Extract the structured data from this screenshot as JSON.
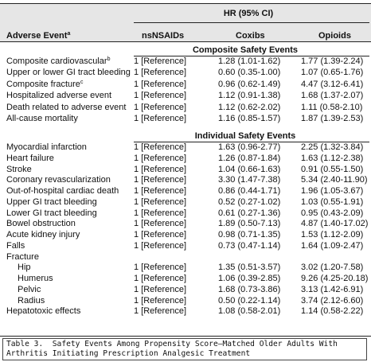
{
  "table": {
    "group_header": "HR (95% CI)",
    "columns": [
      "Adverse Event",
      "nsNSAIDs",
      "Coxibs",
      "Opioids"
    ],
    "column_note": "a",
    "sections": [
      {
        "title": "Composite Safety Events",
        "rows": [
          {
            "event": "Composite cardiovascular",
            "note": "b",
            "cells": [
              "1 [Reference]",
              "1.28 (1.01-1.62)",
              "1.77 (1.39-2.24)"
            ]
          },
          {
            "event": "Upper or lower GI tract bleeding",
            "cells": [
              "1 [Reference]",
              "0.60 (0.35-1.00)",
              "1.07 (0.65-1.76)"
            ]
          },
          {
            "event": "Composite fracture",
            "note": "c",
            "cells": [
              "1 [Reference]",
              "0.96 (0.62-1.49)",
              "4.47 (3.12-6.41)"
            ]
          },
          {
            "event": "Hospitalized adverse event",
            "cells": [
              "1 [Reference]",
              "1.12 (0.91-1.38)",
              "1.68 (1.37-2.07)"
            ]
          },
          {
            "event": "Death related to adverse event",
            "cells": [
              "1 [Reference]",
              "1.12 (0.62-2.02)",
              "1.11 (0.58-2.10)"
            ]
          },
          {
            "event": "All-cause mortality",
            "cells": [
              "1 [Reference]",
              "1.16 (0.85-1.57)",
              "1.87 (1.39-2.53)"
            ]
          }
        ]
      },
      {
        "title": "Individual Safety Events",
        "rows": [
          {
            "event": "Myocardial infarction",
            "cells": [
              "1 [Reference]",
              "1.63 (0.96-2.77)",
              "2.25 (1.32-3.84)"
            ]
          },
          {
            "event": "Heart failure",
            "cells": [
              "1 [Reference]",
              "1.26 (0.87-1.84)",
              "1.63 (1.12-2.38)"
            ]
          },
          {
            "event": "Stroke",
            "cells": [
              "1 [Reference]",
              "1.04 (0.66-1.63)",
              "0.91 (0.55-1.50)"
            ]
          },
          {
            "event": "Coronary revascularization",
            "cells": [
              "1 [Reference]",
              "3.30 (1.47-7.38)",
              "5.34 (2.40-11.90)"
            ]
          },
          {
            "event": "Out-of-hospital cardiac death",
            "cells": [
              "1 [Reference]",
              "0.86 (0.44-1.71)",
              "1.96 (1.05-3.67)"
            ]
          },
          {
            "event": "Upper GI tract bleeding",
            "cells": [
              "1 [Reference]",
              "0.52 (0.27-1.02)",
              "1.03 (0.55-1.91)"
            ]
          },
          {
            "event": "Lower GI tract bleeding",
            "cells": [
              "1 [Reference]",
              "0.61 (0.27-1.36)",
              "0.95 (0.43-2.09)"
            ]
          },
          {
            "event": "Bowel obstruction",
            "cells": [
              "1 [Reference]",
              "1.89 (0.50-7.13)",
              "4.87 (1.40-17.02)"
            ]
          },
          {
            "event": "Acute kidney injury",
            "cells": [
              "1 [Reference]",
              "0.98 (0.71-1.35)",
              "1.53 (1.12-2.09)"
            ]
          },
          {
            "event": "Falls",
            "cells": [
              "1 [Reference]",
              "0.73 (0.47-1.14)",
              "1.64 (1.09-2.47)"
            ]
          },
          {
            "event": "Fracture",
            "subrows": [
              {
                "event": "Hip",
                "cells": [
                  "1 [Reference]",
                  "1.35 (0.51-3.57)",
                  "3.02 (1.20-7.58)"
                ]
              },
              {
                "event": "Humerus",
                "cells": [
                  "1 [Reference]",
                  "1.06 (0.39-2.85)",
                  "9.26 (4.25-20.18)"
                ]
              },
              {
                "event": "Pelvic",
                "cells": [
                  "1 [Reference]",
                  "1.68 (0.73-3.86)",
                  "3.13 (1.42-6.91)"
                ]
              },
              {
                "event": "Radius",
                "cells": [
                  "1 [Reference]",
                  "0.50 (0.22-1.14)",
                  "3.74 (2.12-6.60)"
                ]
              }
            ]
          },
          {
            "event": "Hepatotoxic effects",
            "cells": [
              "1 [Reference]",
              "1.08 (0.58-2.01)",
              "1.14 (0.58-2.22)"
            ]
          }
        ]
      }
    ]
  },
  "caption": {
    "label": "Table 3.",
    "text": "Safety Events Among Propensity Score–Matched Older Adults With Arthritis Initiating Prescription Analgesic Treatment"
  }
}
